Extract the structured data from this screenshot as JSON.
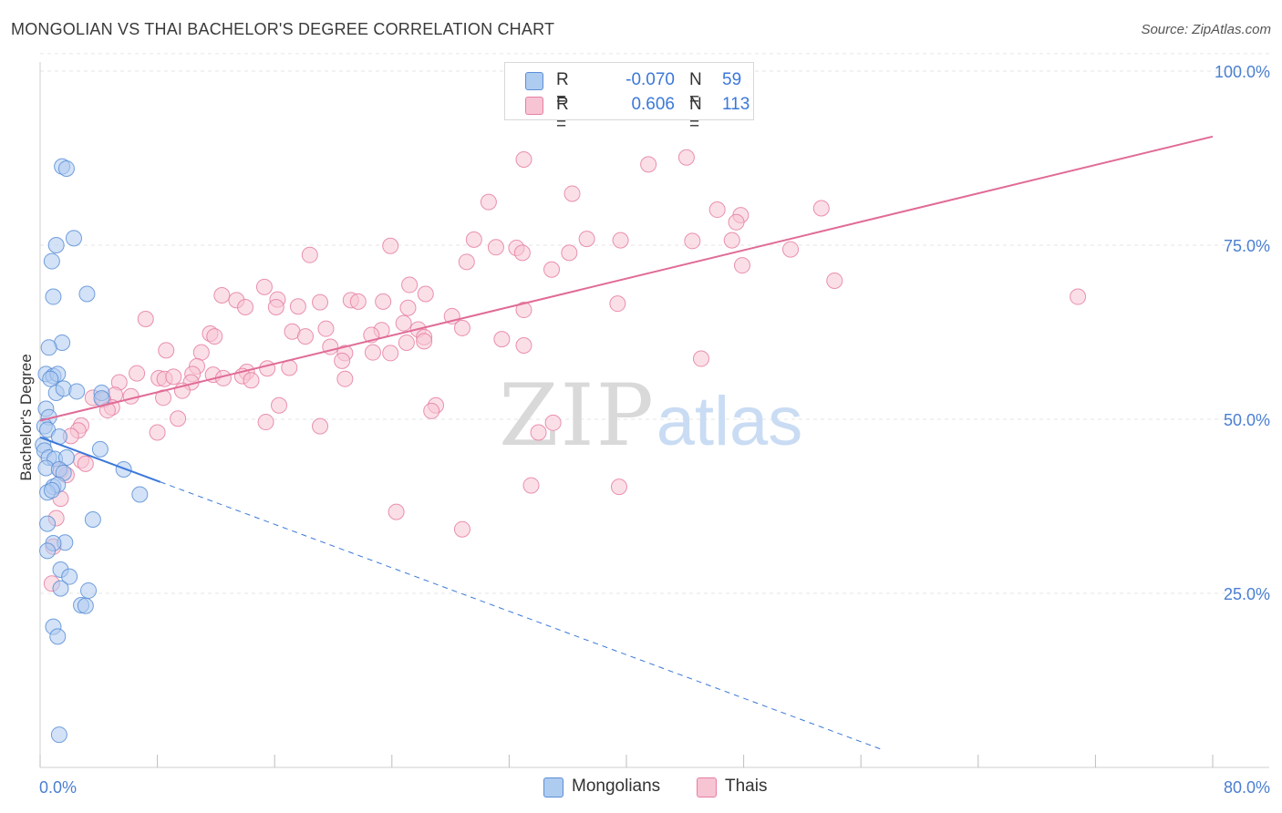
{
  "title": "MONGOLIAN VS THAI BACHELOR'S DEGREE CORRELATION CHART",
  "source": "Source: ZipAtlas.com",
  "watermark": {
    "zip": "ZIP",
    "atlas": "atlas"
  },
  "legend": {
    "rows": [
      {
        "label": "R =",
        "r_value": "-0.070",
        "n_label": "N =",
        "n_value": "59",
        "color": "#aecbf0",
        "border": "#5b8fd6"
      },
      {
        "label": "R =",
        "r_value": "0.606",
        "n_label": "N =",
        "n_value": "113",
        "color": "#f7c4d3",
        "border": "#e57fa2"
      }
    ]
  },
  "bottom_legend": [
    {
      "label": "Mongolians",
      "color": "#aecbf0",
      "border": "#5b8fd6"
    },
    {
      "label": "Thais",
      "color": "#f7c4d3",
      "border": "#e57fa2"
    }
  ],
  "chart_data": {
    "type": "scatter",
    "title": "MONGOLIAN VS THAI BACHELOR'S DEGREE CORRELATION CHART",
    "xlabel": "",
    "ylabel": "Bachelor's Degree",
    "xlim": [
      0,
      80
    ],
    "ylim": [
      0,
      105
    ],
    "x_tick_labels": [
      "0.0%",
      "80.0%"
    ],
    "y_ticks": [
      25,
      50,
      75,
      100
    ],
    "y_tick_labels": [
      "25.0%",
      "50.0%",
      "75.0%",
      "100.0%"
    ],
    "grid": true,
    "series": [
      {
        "name": "Mongolians",
        "color": "#5b8fd6",
        "fill": "#aecbf0",
        "trend": {
          "x": [
            0,
            8.2
          ],
          "y": [
            47.4,
            41.0
          ],
          "dash_to_x": 57.5
        },
        "points": [
          [
            1.5,
            86.3
          ],
          [
            1.8,
            86.0
          ],
          [
            1.1,
            75.0
          ],
          [
            2.3,
            76.0
          ],
          [
            0.8,
            72.7
          ],
          [
            0.9,
            67.6
          ],
          [
            3.2,
            68.0
          ],
          [
            1.5,
            61.0
          ],
          [
            0.6,
            60.3
          ],
          [
            0.4,
            56.5
          ],
          [
            0.9,
            56.2
          ],
          [
            1.2,
            56.5
          ],
          [
            0.7,
            55.8
          ],
          [
            1.1,
            53.8
          ],
          [
            1.6,
            54.4
          ],
          [
            2.5,
            54.0
          ],
          [
            4.2,
            53.8
          ],
          [
            4.2,
            53.0
          ],
          [
            0.4,
            51.5
          ],
          [
            0.6,
            50.3
          ],
          [
            0.3,
            49.0
          ],
          [
            0.5,
            48.5
          ],
          [
            1.3,
            47.5
          ],
          [
            0.2,
            46.3
          ],
          [
            0.3,
            45.5
          ],
          [
            4.1,
            45.7
          ],
          [
            0.6,
            44.5
          ],
          [
            1.0,
            44.3
          ],
          [
            1.8,
            44.5
          ],
          [
            0.4,
            43.0
          ],
          [
            1.3,
            42.8
          ],
          [
            1.6,
            42.3
          ],
          [
            5.7,
            42.8
          ],
          [
            0.9,
            40.3
          ],
          [
            1.2,
            40.6
          ],
          [
            0.5,
            39.5
          ],
          [
            0.8,
            39.8
          ],
          [
            6.8,
            39.2
          ],
          [
            3.6,
            35.6
          ],
          [
            0.5,
            35.0
          ],
          [
            1.7,
            32.3
          ],
          [
            0.9,
            32.2
          ],
          [
            0.5,
            31.1
          ],
          [
            1.4,
            28.4
          ],
          [
            2.0,
            27.4
          ],
          [
            1.4,
            25.7
          ],
          [
            3.3,
            25.4
          ],
          [
            2.8,
            23.3
          ],
          [
            3.1,
            23.2
          ],
          [
            0.9,
            20.2
          ],
          [
            1.2,
            18.8
          ],
          [
            1.3,
            4.7
          ]
        ]
      },
      {
        "name": "Thais",
        "color": "#e57fa2",
        "fill": "#f7c4d3",
        "trend": {
          "x": [
            0,
            80
          ],
          "y": [
            49.8,
            90.6
          ]
        },
        "points": [
          [
            33.0,
            87.3
          ],
          [
            41.5,
            86.6
          ],
          [
            44.1,
            87.6
          ],
          [
            30.6,
            81.2
          ],
          [
            36.3,
            82.4
          ],
          [
            53.3,
            80.3
          ],
          [
            47.8,
            79.3
          ],
          [
            47.5,
            78.3
          ],
          [
            29.6,
            75.8
          ],
          [
            31.1,
            74.7
          ],
          [
            32.5,
            74.6
          ],
          [
            37.3,
            75.9
          ],
          [
            39.6,
            75.7
          ],
          [
            44.5,
            75.6
          ],
          [
            47.2,
            75.7
          ],
          [
            23.9,
            74.9
          ],
          [
            18.4,
            73.6
          ],
          [
            32.9,
            73.9
          ],
          [
            36.1,
            73.9
          ],
          [
            51.2,
            74.4
          ],
          [
            29.1,
            72.6
          ],
          [
            34.9,
            71.5
          ],
          [
            47.9,
            72.1
          ],
          [
            54.2,
            69.9
          ],
          [
            70.8,
            67.6
          ],
          [
            25.2,
            69.3
          ],
          [
            15.3,
            69.0
          ],
          [
            12.4,
            67.8
          ],
          [
            26.3,
            68.0
          ],
          [
            13.4,
            67.1
          ],
          [
            16.2,
            67.2
          ],
          [
            19.1,
            66.8
          ],
          [
            21.2,
            67.1
          ],
          [
            21.7,
            66.9
          ],
          [
            23.4,
            66.9
          ],
          [
            14.0,
            66.1
          ],
          [
            16.1,
            66.1
          ],
          [
            17.6,
            66.2
          ],
          [
            25.1,
            66.0
          ],
          [
            33.0,
            65.7
          ],
          [
            39.4,
            66.6
          ],
          [
            28.1,
            64.8
          ],
          [
            24.8,
            63.8
          ],
          [
            23.3,
            62.8
          ],
          [
            7.2,
            64.4
          ],
          [
            19.5,
            63.0
          ],
          [
            25.8,
            62.9
          ],
          [
            17.2,
            62.6
          ],
          [
            11.6,
            62.3
          ],
          [
            18.1,
            61.9
          ],
          [
            11.9,
            61.9
          ],
          [
            26.2,
            61.8
          ],
          [
            26.2,
            61.2
          ],
          [
            25.0,
            61.0
          ],
          [
            19.8,
            60.4
          ],
          [
            33.0,
            60.6
          ],
          [
            28.8,
            63.1
          ],
          [
            22.6,
            62.1
          ],
          [
            8.6,
            59.9
          ],
          [
            11.0,
            59.6
          ],
          [
            20.8,
            59.5
          ],
          [
            22.7,
            59.6
          ],
          [
            23.9,
            59.5
          ],
          [
            31.5,
            61.5
          ],
          [
            20.6,
            58.4
          ],
          [
            45.1,
            58.7
          ],
          [
            10.7,
            57.6
          ],
          [
            15.5,
            57.3
          ],
          [
            17.0,
            57.4
          ],
          [
            6.6,
            56.6
          ],
          [
            10.4,
            56.5
          ],
          [
            11.8,
            56.4
          ],
          [
            14.1,
            56.8
          ],
          [
            8.1,
            55.9
          ],
          [
            8.5,
            55.8
          ],
          [
            9.1,
            56.1
          ],
          [
            12.5,
            55.9
          ],
          [
            13.8,
            56.2
          ],
          [
            20.8,
            55.8
          ],
          [
            5.4,
            55.3
          ],
          [
            10.3,
            55.3
          ],
          [
            14.4,
            55.6
          ],
          [
            9.7,
            54.1
          ],
          [
            5.1,
            53.5
          ],
          [
            6.2,
            53.3
          ],
          [
            8.4,
            53.1
          ],
          [
            3.6,
            53.1
          ],
          [
            4.3,
            52.8
          ],
          [
            4.9,
            51.7
          ],
          [
            4.6,
            51.3
          ],
          [
            16.3,
            52.0
          ],
          [
            27.0,
            52.0
          ],
          [
            26.7,
            51.2
          ],
          [
            9.4,
            50.1
          ],
          [
            15.4,
            49.6
          ],
          [
            19.1,
            49.0
          ],
          [
            35.0,
            49.5
          ],
          [
            2.8,
            49.1
          ],
          [
            2.6,
            48.4
          ],
          [
            8.0,
            48.1
          ],
          [
            34.0,
            48.1
          ],
          [
            2.1,
            47.6
          ],
          [
            2.8,
            44.1
          ],
          [
            3.1,
            43.6
          ],
          [
            1.4,
            42.6
          ],
          [
            1.8,
            42.0
          ],
          [
            33.5,
            40.5
          ],
          [
            39.5,
            40.3
          ],
          [
            1.4,
            38.6
          ],
          [
            24.3,
            36.7
          ],
          [
            1.1,
            35.8
          ],
          [
            28.8,
            34.2
          ],
          [
            0.9,
            31.7
          ],
          [
            0.8,
            26.4
          ],
          [
            46.2,
            80.1
          ]
        ]
      }
    ]
  }
}
